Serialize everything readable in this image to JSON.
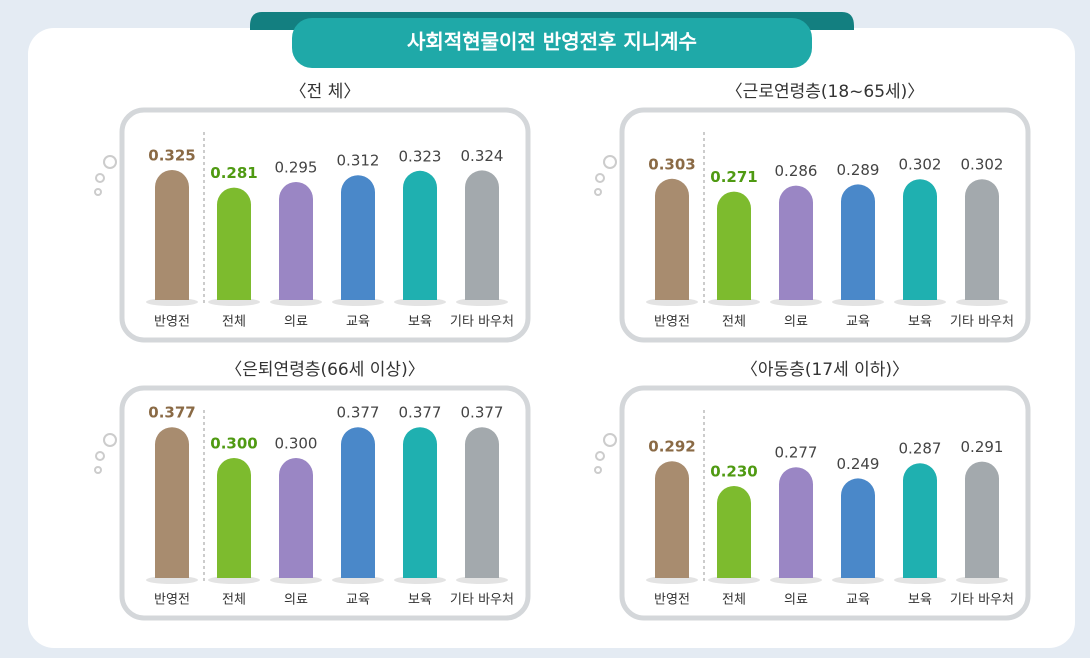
{
  "title": "사회적현물이전 반영전후 지니계수",
  "chart_data": [
    {
      "type": "bar",
      "title": "〈전 체〉",
      "categories": [
        "반영전",
        "전체",
        "의료",
        "교육",
        "보육",
        "기타 바우처"
      ],
      "values": [
        0.325,
        0.281,
        0.295,
        0.312,
        0.323,
        0.324
      ],
      "value_labels": [
        "0.325",
        "0.281",
        "0.295",
        "0.312",
        "0.323",
        "0.324"
      ],
      "colors": [
        "#a88c6f",
        "#7dbb2e",
        "#9a86c4",
        "#4a88c9",
        "#1fb0b0",
        "#a3a9ad"
      ]
    },
    {
      "type": "bar",
      "title": "〈근로연령층(18~65세)〉",
      "categories": [
        "반영전",
        "전체",
        "의료",
        "교육",
        "보육",
        "기타 바우처"
      ],
      "values": [
        0.303,
        0.271,
        0.286,
        0.289,
        0.302,
        0.302
      ],
      "value_labels": [
        "0.303",
        "0.271",
        "0.286",
        "0.289",
        "0.302",
        "0.302"
      ],
      "colors": [
        "#a88c6f",
        "#7dbb2e",
        "#9a86c4",
        "#4a88c9",
        "#1fb0b0",
        "#a3a9ad"
      ]
    },
    {
      "type": "bar",
      "title": "〈은퇴연령층(66세 이상)〉",
      "categories": [
        "반영전",
        "전체",
        "의료",
        "교육",
        "보육",
        "기타 바우처"
      ],
      "values": [
        0.377,
        0.3,
        0.3,
        0.377,
        0.377,
        0.377
      ],
      "value_labels": [
        "0.377",
        "0.300",
        "0.300",
        "0.377",
        "0.377",
        "0.377"
      ],
      "colors": [
        "#a88c6f",
        "#7dbb2e",
        "#9a86c4",
        "#4a88c9",
        "#1fb0b0",
        "#a3a9ad"
      ]
    },
    {
      "type": "bar",
      "title": "〈아동층(17세 이하)〉",
      "categories": [
        "반영전",
        "전체",
        "의료",
        "교육",
        "보육",
        "기타 바우처"
      ],
      "values": [
        0.292,
        0.23,
        0.277,
        0.249,
        0.287,
        0.291
      ],
      "value_labels": [
        "0.292",
        "0.230",
        "0.277",
        "0.249",
        "0.287",
        "0.291"
      ],
      "colors": [
        "#a88c6f",
        "#7dbb2e",
        "#9a86c4",
        "#4a88c9",
        "#1fb0b0",
        "#a3a9ad"
      ]
    }
  ]
}
